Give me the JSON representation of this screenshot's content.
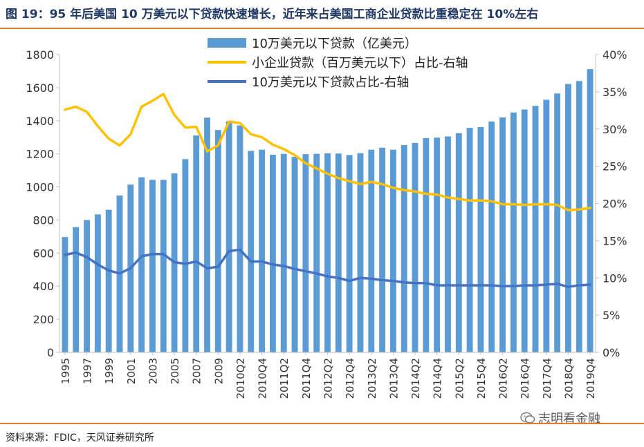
{
  "header": {
    "title": "图 19：95 年后美国 10 万美元以下贷款快速增长，近年来占美国工商企业贷款比重稳定在 10%左右"
  },
  "footer": {
    "source": "资料来源：FDIC，天风证券研究所",
    "watermark": "志明看金融"
  },
  "colors": {
    "bar": "#5b9bd5",
    "line_small_business": "#ffc000",
    "line_under_100k": "#4472c4",
    "rule": "#e07a30",
    "axis": "#bfbfbf"
  },
  "chart_data": {
    "type": "bar",
    "title": "",
    "xlabel": "",
    "ylabel": "",
    "ylim": [
      0,
      1800
    ],
    "y2lim": [
      0,
      40
    ],
    "yticks": [
      0,
      200,
      400,
      600,
      800,
      1000,
      1200,
      1400,
      1600,
      1800
    ],
    "y2ticks": [
      "0%",
      "5%",
      "10%",
      "15%",
      "20%",
      "25%",
      "30%",
      "35%",
      "40%"
    ],
    "grid": false,
    "legend_position": "top",
    "x_tick_labels": [
      "1995",
      "1997",
      "1999",
      "2001",
      "2003",
      "2005",
      "2007",
      "2009",
      "2010Q2",
      "2010Q4",
      "2011Q2",
      "2011Q4",
      "2012Q2",
      "2012Q4",
      "2013Q2",
      "2013Q4",
      "2014Q2",
      "2014Q4",
      "2015Q2",
      "2015Q4",
      "2016Q2",
      "2016Q4",
      "2017Q4",
      "2018Q4",
      "2019Q4"
    ],
    "categories": [
      "1995",
      "1996",
      "1997",
      "1998",
      "1999",
      "2000",
      "2001",
      "2002",
      "2003",
      "2004",
      "2005",
      "2006",
      "2007",
      "2008",
      "2009",
      "2010Q1",
      "2010Q2",
      "2010Q3",
      "2010Q4",
      "2011Q1",
      "2011Q2",
      "2011Q3",
      "2011Q4",
      "2012Q1",
      "2012Q2",
      "2012Q3",
      "2012Q4",
      "2013Q1",
      "2013Q2",
      "2013Q3",
      "2013Q4",
      "2014Q1",
      "2014Q2",
      "2014Q3",
      "2014Q4",
      "2015Q1",
      "2015Q2",
      "2015Q3",
      "2015Q4",
      "2016Q1",
      "2016Q2",
      "2016Q3",
      "2016Q4",
      "2017Q2",
      "2017Q4",
      "2018Q2",
      "2018Q4",
      "2019Q2",
      "2019Q4"
    ],
    "series": [
      {
        "name": "10万美元以下贷款（亿美元）",
        "type": "bar",
        "axis": "left",
        "values": [
          697,
          757,
          800,
          834,
          862,
          948,
          1014,
          1058,
          1043,
          1043,
          1082,
          1168,
          1311,
          1419,
          1344,
          1397,
          1372,
          1218,
          1225,
          1195,
          1200,
          1182,
          1198,
          1200,
          1203,
          1202,
          1193,
          1204,
          1225,
          1237,
          1225,
          1253,
          1266,
          1295,
          1298,
          1305,
          1325,
          1357,
          1362,
          1396,
          1420,
          1450,
          1468,
          1490,
          1527,
          1565,
          1622,
          1640,
          1712
        ]
      },
      {
        "name": "小企业贷款（百万美元以下）占比-右轴",
        "type": "line",
        "axis": "right",
        "values": [
          32.6,
          33.0,
          32.3,
          30.4,
          28.7,
          27.8,
          29.3,
          33.0,
          33.8,
          34.7,
          31.9,
          30.2,
          30.3,
          27.0,
          27.8,
          31.0,
          30.8,
          29.3,
          28.9,
          27.9,
          27.3,
          26.5,
          25.4,
          24.7,
          24.0,
          23.4,
          23.0,
          22.6,
          22.9,
          22.6,
          22.1,
          21.8,
          21.6,
          21.3,
          21.2,
          20.8,
          20.6,
          20.4,
          20.4,
          20.3,
          19.9,
          19.9,
          19.8,
          19.9,
          19.9,
          19.8,
          19.1,
          19.2,
          19.4
        ]
      },
      {
        "name": "10万美元以下贷款占比-右轴",
        "type": "line",
        "axis": "right",
        "values": [
          13.1,
          13.4,
          12.8,
          11.8,
          11.0,
          10.6,
          11.3,
          12.9,
          13.2,
          13.2,
          12.1,
          11.9,
          12.2,
          11.3,
          11.5,
          13.6,
          13.8,
          12.2,
          12.2,
          11.8,
          11.6,
          11.2,
          10.9,
          10.6,
          10.2,
          10.0,
          9.6,
          10.0,
          9.9,
          9.7,
          9.6,
          9.4,
          9.3,
          9.3,
          9.0,
          9.0,
          9.0,
          9.0,
          9.0,
          9.0,
          8.9,
          8.9,
          9.0,
          9.0,
          9.1,
          9.2,
          8.8,
          9.0,
          9.1
        ]
      }
    ]
  }
}
